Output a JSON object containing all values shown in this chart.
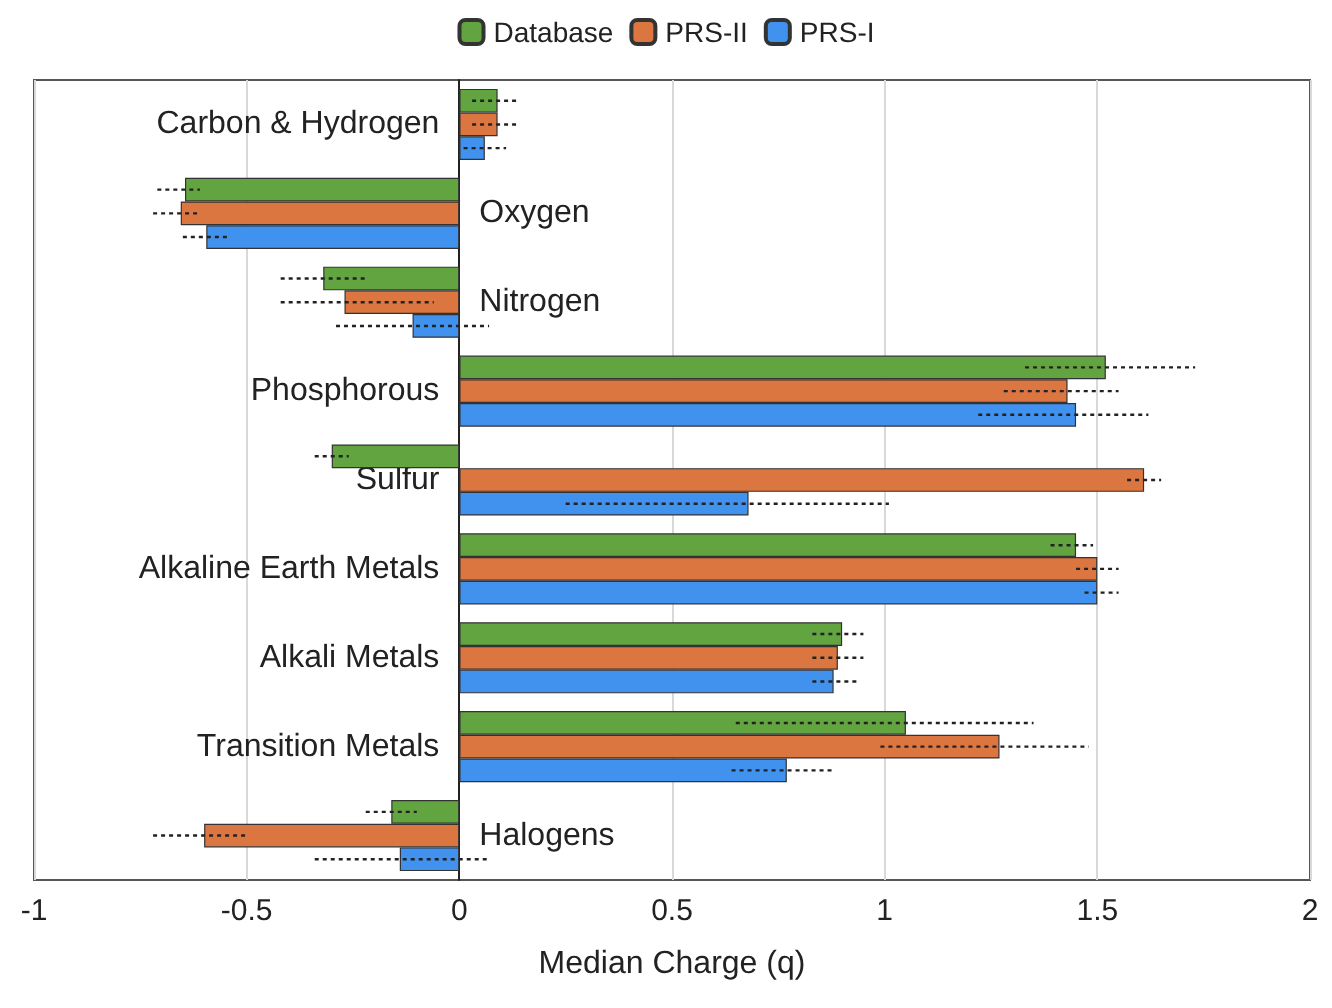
{
  "chart_data": {
    "type": "bar",
    "orientation": "horizontal",
    "xlabel": "Median Charge (q)",
    "categories": [
      "Carbon & Hydrogen",
      "Oxygen",
      "Nitrogen",
      "Phosphorous",
      "Sulfur",
      "Alkaline Earth Metals",
      "Alkali Metals",
      "Transition Metals",
      "Halogens"
    ],
    "series": [
      {
        "name": "Database",
        "color": "#62a440",
        "values": [
          0.09,
          -0.645,
          -0.32,
          1.52,
          -0.3,
          1.45,
          0.9,
          1.05,
          -0.16
        ],
        "errors": [
          [
            0.03,
            0.14
          ],
          [
            -0.71,
            -0.61
          ],
          [
            -0.42,
            -0.22
          ],
          [
            1.33,
            1.73
          ],
          [
            -0.34,
            -0.26
          ],
          [
            1.39,
            1.49
          ],
          [
            0.83,
            0.95
          ],
          [
            0.65,
            1.35
          ],
          [
            -0.22,
            -0.1
          ]
        ]
      },
      {
        "name": "PRS-II",
        "color": "#dc7640",
        "values": [
          0.09,
          -0.655,
          -0.27,
          1.43,
          1.61,
          1.5,
          0.89,
          1.27,
          -0.6
        ],
        "errors": [
          [
            0.03,
            0.14
          ],
          [
            -0.72,
            -0.61
          ],
          [
            -0.42,
            -0.06
          ],
          [
            1.28,
            1.55
          ],
          [
            1.57,
            1.65
          ],
          [
            1.45,
            1.55
          ],
          [
            0.83,
            0.95
          ],
          [
            0.99,
            1.48
          ],
          [
            -0.72,
            -0.5
          ]
        ]
      },
      {
        "name": "PRS-I",
        "color": "#4192ee",
        "values": [
          0.06,
          -0.595,
          -0.11,
          1.45,
          0.68,
          1.5,
          0.88,
          0.77,
          -0.14
        ],
        "errors": [
          [
            0.01,
            0.11
          ],
          [
            -0.65,
            -0.54
          ],
          [
            -0.29,
            0.07
          ],
          [
            1.22,
            1.62
          ],
          [
            0.25,
            1.01
          ],
          [
            1.47,
            1.55
          ],
          [
            0.83,
            0.94
          ],
          [
            0.64,
            0.88
          ],
          [
            -0.34,
            0.07
          ]
        ]
      }
    ],
    "xlim": [
      -1,
      2
    ],
    "xticks": [
      -1,
      -0.5,
      0,
      0.5,
      1,
      1.5,
      2
    ],
    "grid": "x",
    "legend": "top"
  }
}
